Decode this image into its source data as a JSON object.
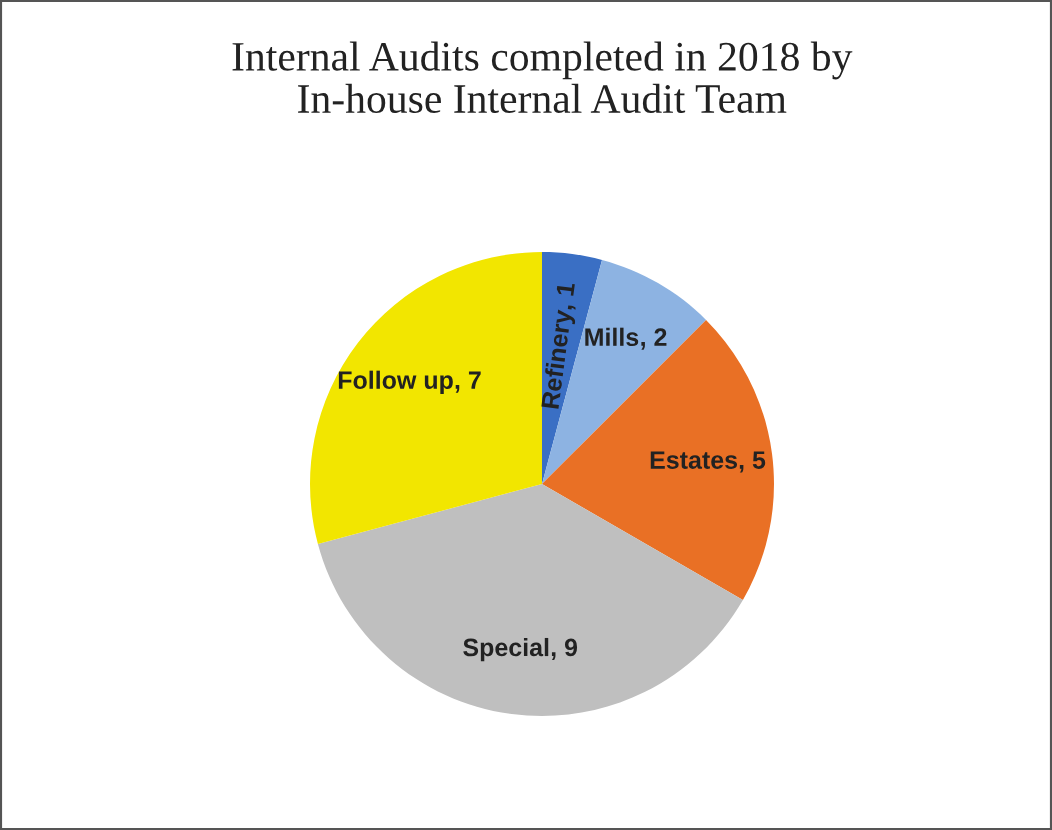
{
  "chart_data": {
    "type": "pie",
    "title": "Internal Audits completed in 2018 by\nIn-house Internal Audit Team",
    "categories": [
      "Refinery",
      "Mills",
      "Estates",
      "Special",
      "Follow up"
    ],
    "values": [
      1,
      2,
      5,
      9,
      7
    ],
    "colors": [
      "#3a6fc4",
      "#8db3e2",
      "#e97025",
      "#bfbfbf",
      "#f2e600"
    ],
    "value_labels": [
      ", 1",
      ", 2",
      ", 5",
      ", 9",
      ", 7"
    ],
    "legend": false
  }
}
